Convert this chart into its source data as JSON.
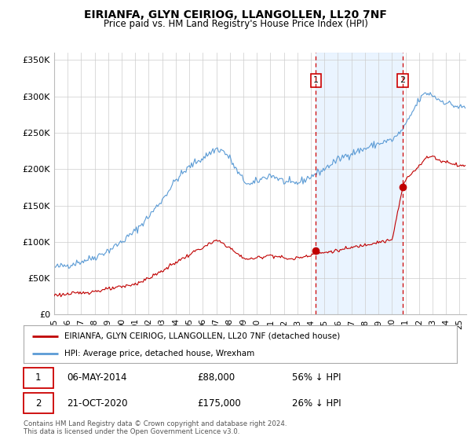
{
  "title": "EIRIANFA, GLYN CEIRIOG, LLANGOLLEN, LL20 7NF",
  "subtitle": "Price paid vs. HM Land Registry's House Price Index (HPI)",
  "hpi_color": "#5b9bd5",
  "hpi_fill_color": "#ddeeff",
  "price_color": "#c00000",
  "dashed_color": "#cc0000",
  "background_color": "#ffffff",
  "grid_color": "#cccccc",
  "ylim": [
    0,
    360000
  ],
  "yticks": [
    0,
    50000,
    100000,
    150000,
    200000,
    250000,
    300000,
    350000
  ],
  "ytick_labels": [
    "£0",
    "£50K",
    "£100K",
    "£150K",
    "£200K",
    "£250K",
    "£300K",
    "£350K"
  ],
  "transaction1": {
    "date": "06-MAY-2014",
    "price": 88000,
    "pct": "56%",
    "direction": "↓",
    "label": "1"
  },
  "transaction2": {
    "date": "21-OCT-2020",
    "price": 175000,
    "pct": "26%",
    "direction": "↓",
    "label": "2"
  },
  "legend_property": "EIRIANFA, GLYN CEIRIOG, LLANGOLLEN, LL20 7NF (detached house)",
  "legend_hpi": "HPI: Average price, detached house, Wrexham",
  "footer": "Contains HM Land Registry data © Crown copyright and database right 2024.\nThis data is licensed under the Open Government Licence v3.0.",
  "xlim": [
    1995.0,
    2025.5
  ],
  "xtick_years": [
    1995,
    1996,
    1997,
    1998,
    1999,
    2000,
    2001,
    2002,
    2003,
    2004,
    2005,
    2006,
    2007,
    2008,
    2009,
    2010,
    2011,
    2012,
    2013,
    2014,
    2015,
    2016,
    2017,
    2018,
    2019,
    2020,
    2021,
    2022,
    2023,
    2024,
    2025
  ],
  "marker1_x": 2014.37,
  "marker1_y": 88000,
  "marker2_x": 2020.8,
  "marker2_y": 175000,
  "vline1_x": 2014.37,
  "vline2_x": 2020.8
}
